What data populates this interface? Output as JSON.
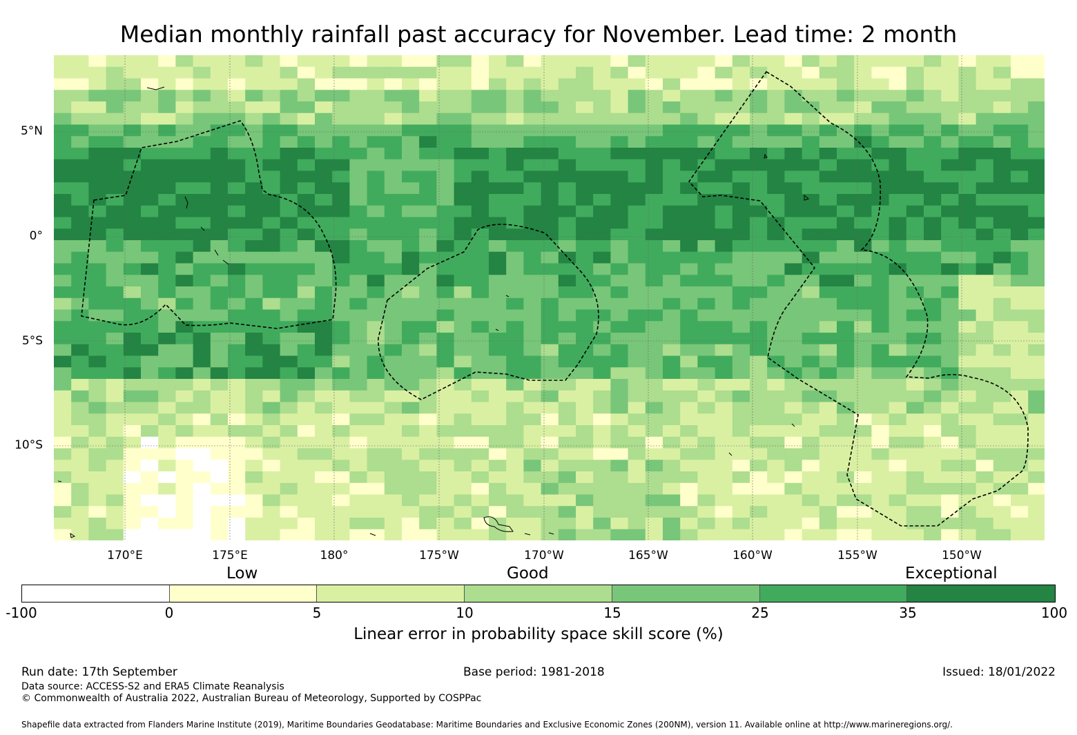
{
  "title": "Median monthly rainfall past accuracy for November. Lead time: 2 month",
  "y_axis": [
    "5°N",
    "0°",
    "5°S",
    "10°S"
  ],
  "x_axis": [
    "170°E",
    "175°E",
    "180°",
    "175°W",
    "170°W",
    "165°W",
    "160°W",
    "155°W",
    "150°W"
  ],
  "legend": {
    "categories": [
      "Low",
      "Good",
      "Exceptional"
    ],
    "ticks": [
      "-100",
      "0",
      "5",
      "10",
      "15",
      "25",
      "35",
      "100"
    ],
    "colors": [
      "#ffffff",
      "#ffffcc",
      "#d9f0a3",
      "#addd8e",
      "#78c679",
      "#41ab5d",
      "#238443"
    ],
    "label": "Linear error in probability space skill score (%)"
  },
  "footer": {
    "run_date": "Run date: 17th September",
    "base_period": "Base period: 1981-2018",
    "issued": "Issued: 18/01/2022",
    "data_source": "Data source: ACCESS-S2 and ERA5 Climate Reanalysis",
    "copyright": "© Commonwealth of Australia 2022, Australian Bureau of Meteorology, Supported by COSPPac",
    "shapefile": "Shapefile data extracted from Flanders Marine Institute (2019), Maritime Boundaries Geodatabase: Maritime Boundaries and Exclusive Economic Zones (200NM), version 11. Available online at http://www.marineregions.org/."
  }
}
